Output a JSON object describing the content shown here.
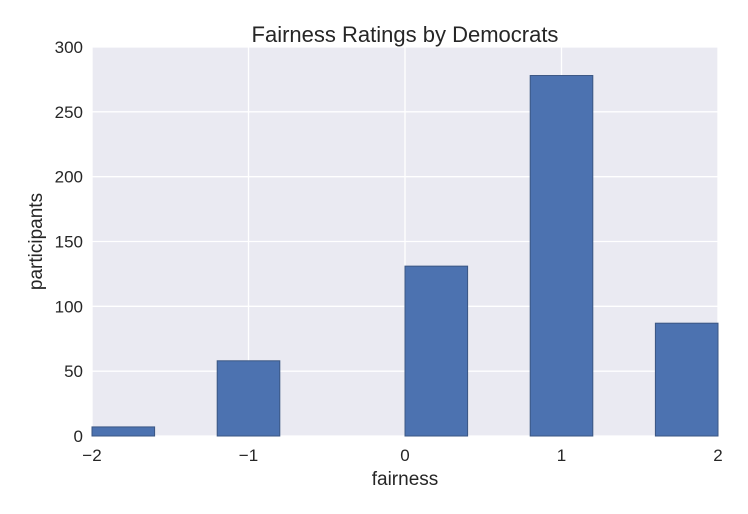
{
  "chart_data": {
    "type": "bar",
    "title": "Fairness Ratings by Democrats",
    "xlabel": "fairness",
    "ylabel": "participants",
    "xlim": [
      -2,
      2
    ],
    "ylim": [
      0,
      300
    ],
    "x_ticks": [
      -2,
      -1,
      0,
      1,
      2
    ],
    "x_tick_labels": [
      "−2",
      "−1",
      "0",
      "1",
      "2"
    ],
    "y_ticks": [
      0,
      50,
      100,
      150,
      200,
      250,
      300
    ],
    "y_tick_labels": [
      "0",
      "50",
      "100",
      "150",
      "200",
      "250",
      "300"
    ],
    "bars": [
      {
        "x0": -2.0,
        "x1": -1.6,
        "value": 7
      },
      {
        "x0": -1.2,
        "x1": -0.8,
        "value": 58
      },
      {
        "x0": 0.0,
        "x1": 0.4,
        "value": 131
      },
      {
        "x0": 0.8,
        "x1": 1.2,
        "value": 278
      },
      {
        "x0": 1.6,
        "x1": 2.0,
        "value": 87
      }
    ],
    "grid": true,
    "colors": {
      "bar": "#4c72b0",
      "bar_edge": "#3a5683",
      "background": "#eaeaf2",
      "grid": "#ffffff"
    }
  }
}
